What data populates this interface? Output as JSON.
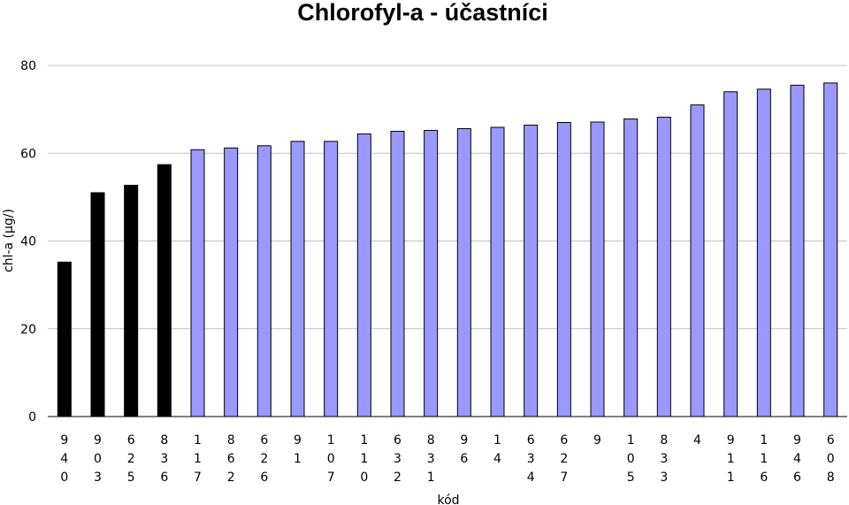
{
  "chart_data": {
    "type": "bar",
    "title": "Chlorofyl-a - účastníci",
    "xlabel": "kód",
    "ylabel": "chl-a (µg/)",
    "ylim": [
      0,
      80
    ],
    "yticks": [
      0,
      20,
      40,
      60,
      80
    ],
    "grid": true,
    "categories": [
      "940",
      "903",
      "625",
      "836",
      "117",
      "862",
      "626",
      "91",
      "107",
      "110",
      "632",
      "831",
      "96",
      "14",
      "634",
      "627",
      "9",
      "105",
      "833",
      "4",
      "911",
      "116",
      "946",
      "608"
    ],
    "values": [
      35.2,
      51.0,
      52.7,
      57.4,
      60.8,
      61.2,
      61.7,
      62.7,
      62.7,
      64.4,
      65.0,
      65.2,
      65.6,
      65.9,
      66.4,
      67.0,
      67.1,
      67.8,
      68.2,
      71.0,
      74.0,
      74.6,
      75.5,
      76.0
    ],
    "highlighted": [
      true,
      true,
      true,
      true,
      false,
      false,
      false,
      false,
      false,
      false,
      false,
      false,
      false,
      false,
      false,
      false,
      false,
      false,
      false,
      false,
      false,
      false,
      false,
      false
    ],
    "colors": {
      "highlight": "#000000",
      "default": "#9999ff",
      "border": "#000000",
      "grid": "#c0c0c0"
    }
  }
}
